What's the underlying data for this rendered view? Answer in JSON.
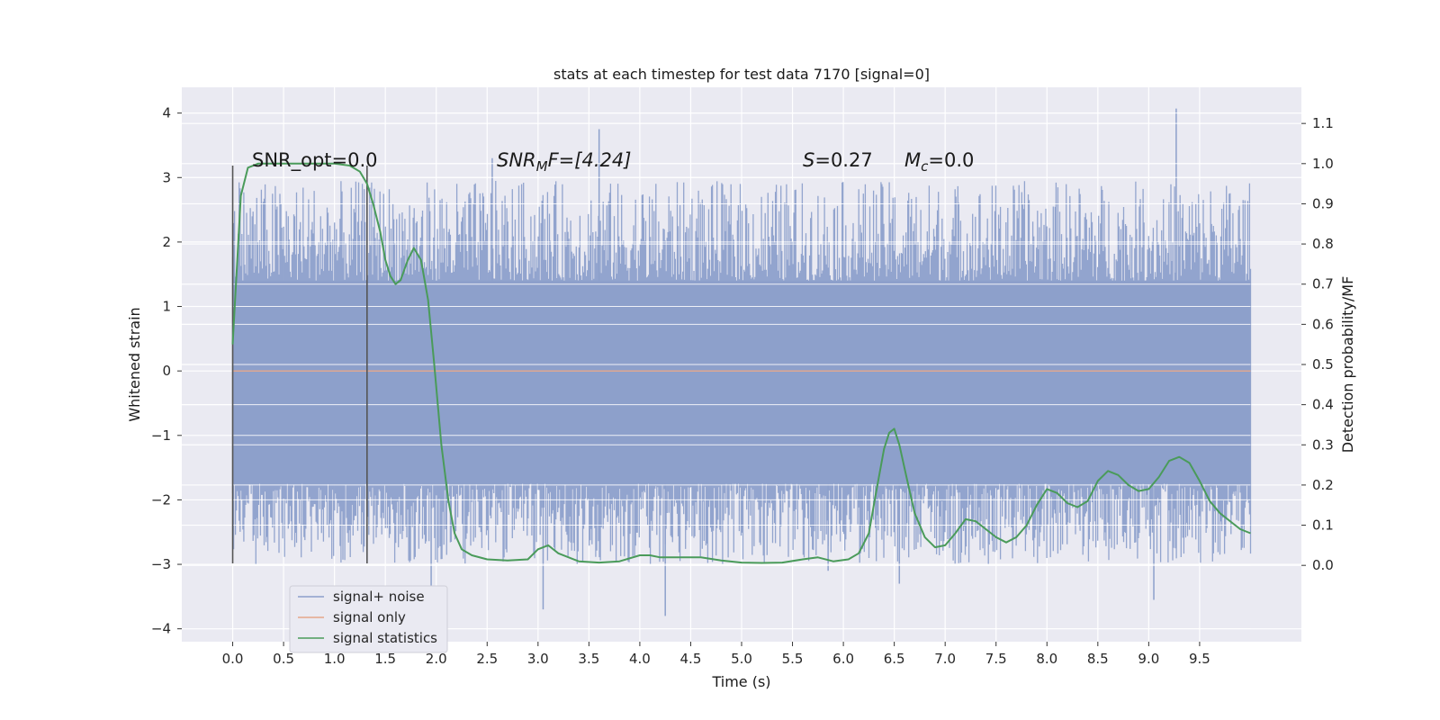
{
  "chart_data": {
    "type": "line",
    "title": "stats at each timestep for test data 7170 [signal=0]",
    "xlabel": "Time (s)",
    "ylabel": "Whitened strain",
    "y2label": "Detection probability/MF",
    "xlim": [
      -0.5,
      10.5
    ],
    "ylim": [
      -4.2,
      4.4
    ],
    "y2lim": [
      -0.19,
      1.19
    ],
    "x_ticks": [
      "0.0",
      "0.5",
      "1.0",
      "1.5",
      "2.0",
      "2.5",
      "3.0",
      "3.5",
      "4.0",
      "4.5",
      "5.0",
      "5.5",
      "6.0",
      "6.5",
      "7.0",
      "7.5",
      "8.0",
      "8.5",
      "9.0",
      "9.5"
    ],
    "y_ticks": [
      4,
      3,
      2,
      1,
      0,
      -1,
      -2,
      -3,
      -4
    ],
    "y2_ticks": [
      "1.1",
      "1.0",
      "0.9",
      "0.8",
      "0.7",
      "0.6",
      "0.5",
      "0.4",
      "0.3",
      "0.2",
      "0.1",
      "0.0"
    ],
    "grid": true,
    "legend_position": "lower-left",
    "colors": {
      "background": "#eaeaf2",
      "noise": "#8da0cb",
      "signal_only": "#e5a68a",
      "statistics": "#4a9b5a",
      "markers": "#555555"
    },
    "annotations": {
      "snr_opt": "SNR_opt=0.0",
      "snr_mf_prefix": "SNR",
      "snr_mf_sub": "M",
      "snr_mf_rest": "F=[4.24]",
      "s_label": "S",
      "s_value": "=0.27",
      "mc_label": "M",
      "mc_sub": "c",
      "mc_value": "=0.0"
    },
    "vertical_markers_x": [
      0.0,
      1.32
    ],
    "series": [
      {
        "name": "signal+ noise",
        "type": "noise-band",
        "x_range": [
          0.0,
          10.0
        ],
        "core_range": [
          -1.75,
          1.4
        ],
        "typical_envelope": [
          -2.3,
          2.4
        ],
        "notable_peaks": [
          [
            3.6,
            3.75
          ],
          [
            9.27,
            4.07
          ],
          [
            2.55,
            3.3
          ],
          [
            5.85,
            -3.1
          ],
          [
            4.25,
            -3.8
          ],
          [
            6.55,
            -3.3
          ],
          [
            9.05,
            -3.55
          ],
          [
            3.05,
            -3.7
          ],
          [
            1.95,
            -3.35
          ]
        ]
      },
      {
        "name": "signal only",
        "x": [
          0.0,
          10.0
        ],
        "y": [
          0.0,
          0.0
        ]
      },
      {
        "name": "signal statistics",
        "axis": "right",
        "x": [
          0.0,
          0.08,
          0.15,
          0.25,
          0.5,
          0.75,
          1.0,
          1.15,
          1.25,
          1.32,
          1.38,
          1.45,
          1.5,
          1.55,
          1.6,
          1.65,
          1.72,
          1.78,
          1.85,
          1.92,
          1.98,
          2.05,
          2.12,
          2.18,
          2.25,
          2.35,
          2.5,
          2.7,
          2.9,
          3.0,
          3.1,
          3.2,
          3.4,
          3.6,
          3.8,
          4.0,
          4.1,
          4.2,
          4.4,
          4.6,
          4.8,
          5.0,
          5.2,
          5.4,
          5.6,
          5.75,
          5.9,
          6.05,
          6.15,
          6.25,
          6.32,
          6.4,
          6.45,
          6.5,
          6.55,
          6.62,
          6.7,
          6.8,
          6.9,
          7.0,
          7.1,
          7.2,
          7.3,
          7.4,
          7.5,
          7.6,
          7.7,
          7.8,
          7.9,
          8.0,
          8.1,
          8.2,
          8.3,
          8.4,
          8.5,
          8.6,
          8.7,
          8.8,
          8.9,
          9.0,
          9.1,
          9.2,
          9.3,
          9.4,
          9.5,
          9.6,
          9.7,
          9.8,
          9.9,
          10.0
        ],
        "y": [
          0.55,
          0.92,
          0.99,
          1.0,
          1.0,
          1.0,
          1.0,
          0.995,
          0.98,
          0.95,
          0.9,
          0.83,
          0.76,
          0.72,
          0.7,
          0.71,
          0.76,
          0.79,
          0.76,
          0.66,
          0.5,
          0.3,
          0.16,
          0.08,
          0.04,
          0.025,
          0.015,
          0.012,
          0.015,
          0.04,
          0.05,
          0.03,
          0.01,
          0.007,
          0.01,
          0.025,
          0.025,
          0.02,
          0.02,
          0.02,
          0.012,
          0.007,
          0.006,
          0.007,
          0.015,
          0.02,
          0.01,
          0.015,
          0.03,
          0.08,
          0.18,
          0.29,
          0.33,
          0.34,
          0.3,
          0.22,
          0.13,
          0.07,
          0.045,
          0.05,
          0.08,
          0.115,
          0.11,
          0.09,
          0.07,
          0.057,
          0.07,
          0.1,
          0.15,
          0.19,
          0.18,
          0.155,
          0.145,
          0.16,
          0.21,
          0.235,
          0.225,
          0.2,
          0.185,
          0.19,
          0.22,
          0.26,
          0.27,
          0.255,
          0.21,
          0.16,
          0.13,
          0.11,
          0.09,
          0.08
        ]
      }
    ]
  }
}
